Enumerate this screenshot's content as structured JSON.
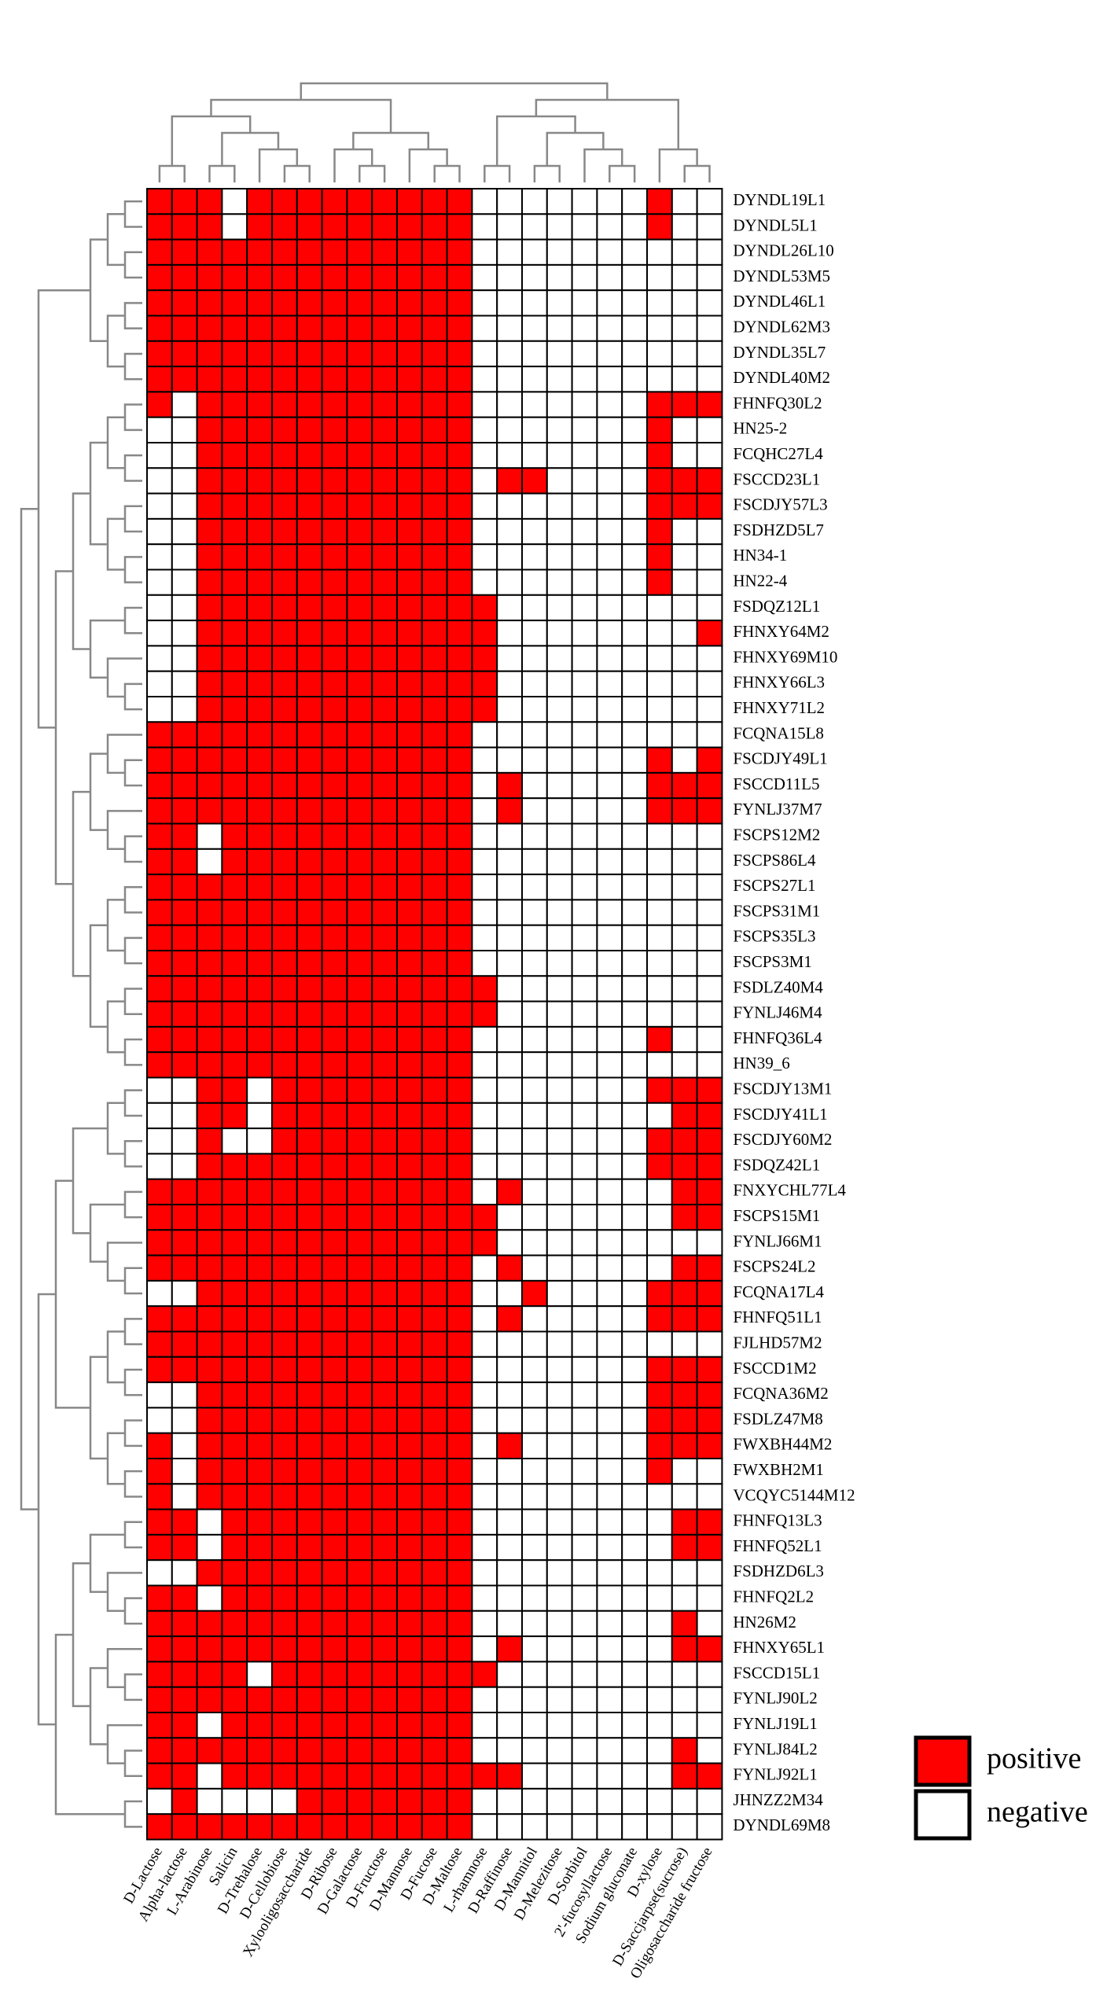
{
  "chart_data": {
    "type": "heatmap",
    "columns": [
      "D-Lactose",
      "Alpha-lactose",
      "L-Arabinose",
      "Salicin",
      "D-Trehalose",
      "D-Cellobiose",
      "Xylooligosaccharide",
      "D-Ribose",
      "D-Galactose",
      "D-Fructose",
      "D-Mannose",
      "D-Fucose",
      "D-Maltose",
      "L-rhamnose",
      "D-Raffinose",
      "D-Mannitol",
      "D-Melezitose",
      "D-Sorbitol",
      "2'-fucosyllactose",
      "Sodium gluconate",
      "D-xylose",
      "D-Saccjarpse(sucrose)",
      "Oligosaccharide fructose"
    ],
    "rows": [
      "DYNDL19L1",
      "DYNDL5L1",
      "DYNDL26L10",
      "DYNDL53M5",
      "DYNDL46L1",
      "DYNDL62M3",
      "DYNDL35L7",
      "DYNDL40M2",
      "FHNFQ30L2",
      "HN25-2",
      "FCQHC27L4",
      "FSCCD23L1",
      "FSCDJY57L3",
      "FSDHZD5L7",
      "HN34-1",
      "HN22-4",
      "FSDQZ12L1",
      "FHNXY64M2",
      "FHNXY69M10",
      "FHNXY66L3",
      "FHNXY71L2",
      "FCQNA15L8",
      "FSCDJY49L1",
      "FSCCD11L5",
      "FYNLJ37M7",
      "FSCPS12M2",
      "FSCPS86L4",
      "FSCPS27L1",
      "FSCPS31M1",
      "FSCPS35L3",
      "FSCPS3M1",
      "FSDLZ40M4",
      "FYNLJ46M4",
      "FHNFQ36L4",
      "HN39_6",
      "FSCDJY13M1",
      "FSCDJY41L1",
      "FSCDJY60M2",
      "FSDQZ42L1",
      "FNXYCHL77L4",
      "FSCPS15M1",
      "FYNLJ66M1",
      "FSCPS24L2",
      "FCQNA17L4",
      "FHNFQ51L1",
      "FJLHD57M2",
      "FSCCD1M2",
      "FCQNA36M2",
      "FSDLZ47M8",
      "FWXBH44M2",
      "FWXBH2M1",
      "VCQYC5144M12",
      "FHNFQ13L3",
      "FHNFQ52L1",
      "FSDHZD6L3",
      "FHNFQ2L2",
      "HN26M2",
      "FHNXY65L1",
      "FSCCD15L1",
      "FYNLJ90L2",
      "FYNLJ19L1",
      "FYNLJ84L2",
      "FYNLJ92L1",
      "JHNZZ2M34",
      "DYNDL69M8"
    ],
    "values": [
      [
        1,
        1,
        1,
        0,
        1,
        1,
        1,
        1,
        1,
        1,
        1,
        1,
        1,
        0,
        0,
        0,
        0,
        0,
        0,
        0,
        1,
        0,
        0
      ],
      [
        1,
        1,
        1,
        0,
        1,
        1,
        1,
        1,
        1,
        1,
        1,
        1,
        1,
        0,
        0,
        0,
        0,
        0,
        0,
        0,
        1,
        0,
        0
      ],
      [
        1,
        1,
        1,
        1,
        1,
        1,
        1,
        1,
        1,
        1,
        1,
        1,
        1,
        0,
        0,
        0,
        0,
        0,
        0,
        0,
        0,
        0,
        0
      ],
      [
        1,
        1,
        1,
        1,
        1,
        1,
        1,
        1,
        1,
        1,
        1,
        1,
        1,
        0,
        0,
        0,
        0,
        0,
        0,
        0,
        0,
        0,
        0
      ],
      [
        1,
        1,
        1,
        1,
        1,
        1,
        1,
        1,
        1,
        1,
        1,
        1,
        1,
        0,
        0,
        0,
        0,
        0,
        0,
        0,
        0,
        0,
        0
      ],
      [
        1,
        1,
        1,
        1,
        1,
        1,
        1,
        1,
        1,
        1,
        1,
        1,
        1,
        0,
        0,
        0,
        0,
        0,
        0,
        0,
        0,
        0,
        0
      ],
      [
        1,
        1,
        1,
        1,
        1,
        1,
        1,
        1,
        1,
        1,
        1,
        1,
        1,
        0,
        0,
        0,
        0,
        0,
        0,
        0,
        0,
        0,
        0
      ],
      [
        1,
        1,
        1,
        1,
        1,
        1,
        1,
        1,
        1,
        1,
        1,
        1,
        1,
        0,
        0,
        0,
        0,
        0,
        0,
        0,
        0,
        0,
        0
      ],
      [
        1,
        0,
        1,
        1,
        1,
        1,
        1,
        1,
        1,
        1,
        1,
        1,
        1,
        0,
        0,
        0,
        0,
        0,
        0,
        0,
        1,
        1,
        1
      ],
      [
        0,
        0,
        1,
        1,
        1,
        1,
        1,
        1,
        1,
        1,
        1,
        1,
        1,
        0,
        0,
        0,
        0,
        0,
        0,
        0,
        1,
        0,
        0
      ],
      [
        0,
        0,
        1,
        1,
        1,
        1,
        1,
        1,
        1,
        1,
        1,
        1,
        1,
        0,
        0,
        0,
        0,
        0,
        0,
        0,
        1,
        0,
        0
      ],
      [
        0,
        0,
        1,
        1,
        1,
        1,
        1,
        1,
        1,
        1,
        1,
        1,
        1,
        0,
        1,
        1,
        0,
        0,
        0,
        0,
        1,
        1,
        1
      ],
      [
        0,
        0,
        1,
        1,
        1,
        1,
        1,
        1,
        1,
        1,
        1,
        1,
        1,
        0,
        0,
        0,
        0,
        0,
        0,
        0,
        1,
        1,
        1
      ],
      [
        0,
        0,
        1,
        1,
        1,
        1,
        1,
        1,
        1,
        1,
        1,
        1,
        1,
        0,
        0,
        0,
        0,
        0,
        0,
        0,
        1,
        0,
        0
      ],
      [
        0,
        0,
        1,
        1,
        1,
        1,
        1,
        1,
        1,
        1,
        1,
        1,
        1,
        0,
        0,
        0,
        0,
        0,
        0,
        0,
        1,
        0,
        0
      ],
      [
        0,
        0,
        1,
        1,
        1,
        1,
        1,
        1,
        1,
        1,
        1,
        1,
        1,
        0,
        0,
        0,
        0,
        0,
        0,
        0,
        1,
        0,
        0
      ],
      [
        0,
        0,
        1,
        1,
        1,
        1,
        1,
        1,
        1,
        1,
        1,
        1,
        1,
        1,
        0,
        0,
        0,
        0,
        0,
        0,
        0,
        0,
        0
      ],
      [
        0,
        0,
        1,
        1,
        1,
        1,
        1,
        1,
        1,
        1,
        1,
        1,
        1,
        1,
        0,
        0,
        0,
        0,
        0,
        0,
        0,
        0,
        1
      ],
      [
        0,
        0,
        1,
        1,
        1,
        1,
        1,
        1,
        1,
        1,
        1,
        1,
        1,
        1,
        0,
        0,
        0,
        0,
        0,
        0,
        0,
        0,
        0
      ],
      [
        0,
        0,
        1,
        1,
        1,
        1,
        1,
        1,
        1,
        1,
        1,
        1,
        1,
        1,
        0,
        0,
        0,
        0,
        0,
        0,
        0,
        0,
        0
      ],
      [
        0,
        0,
        1,
        1,
        1,
        1,
        1,
        1,
        1,
        1,
        1,
        1,
        1,
        1,
        0,
        0,
        0,
        0,
        0,
        0,
        0,
        0,
        0
      ],
      [
        1,
        1,
        1,
        1,
        1,
        1,
        1,
        1,
        1,
        1,
        1,
        1,
        1,
        0,
        0,
        0,
        0,
        0,
        0,
        0,
        0,
        0,
        0
      ],
      [
        1,
        1,
        1,
        1,
        1,
        1,
        1,
        1,
        1,
        1,
        1,
        1,
        1,
        0,
        0,
        0,
        0,
        0,
        0,
        0,
        1,
        0,
        1
      ],
      [
        1,
        1,
        1,
        1,
        1,
        1,
        1,
        1,
        1,
        1,
        1,
        1,
        1,
        0,
        1,
        0,
        0,
        0,
        0,
        0,
        1,
        1,
        1
      ],
      [
        1,
        1,
        1,
        1,
        1,
        1,
        1,
        1,
        1,
        1,
        1,
        1,
        1,
        0,
        1,
        0,
        0,
        0,
        0,
        0,
        1,
        1,
        1
      ],
      [
        1,
        1,
        0,
        1,
        1,
        1,
        1,
        1,
        1,
        1,
        1,
        1,
        1,
        0,
        0,
        0,
        0,
        0,
        0,
        0,
        0,
        0,
        0
      ],
      [
        1,
        1,
        0,
        1,
        1,
        1,
        1,
        1,
        1,
        1,
        1,
        1,
        1,
        0,
        0,
        0,
        0,
        0,
        0,
        0,
        0,
        0,
        0
      ],
      [
        1,
        1,
        1,
        1,
        1,
        1,
        1,
        1,
        1,
        1,
        1,
        1,
        1,
        0,
        0,
        0,
        0,
        0,
        0,
        0,
        0,
        0,
        0
      ],
      [
        1,
        1,
        1,
        1,
        1,
        1,
        1,
        1,
        1,
        1,
        1,
        1,
        1,
        0,
        0,
        0,
        0,
        0,
        0,
        0,
        0,
        0,
        0
      ],
      [
        1,
        1,
        1,
        1,
        1,
        1,
        1,
        1,
        1,
        1,
        1,
        1,
        1,
        0,
        0,
        0,
        0,
        0,
        0,
        0,
        0,
        0,
        0
      ],
      [
        1,
        1,
        1,
        1,
        1,
        1,
        1,
        1,
        1,
        1,
        1,
        1,
        1,
        0,
        0,
        0,
        0,
        0,
        0,
        0,
        0,
        0,
        0
      ],
      [
        1,
        1,
        1,
        1,
        1,
        1,
        1,
        1,
        1,
        1,
        1,
        1,
        1,
        1,
        0,
        0,
        0,
        0,
        0,
        0,
        0,
        0,
        0
      ],
      [
        1,
        1,
        1,
        1,
        1,
        1,
        1,
        1,
        1,
        1,
        1,
        1,
        1,
        1,
        0,
        0,
        0,
        0,
        0,
        0,
        0,
        0,
        0
      ],
      [
        1,
        1,
        1,
        1,
        1,
        1,
        1,
        1,
        1,
        1,
        1,
        1,
        1,
        0,
        0,
        0,
        0,
        0,
        0,
        0,
        1,
        0,
        0
      ],
      [
        1,
        1,
        1,
        1,
        1,
        1,
        1,
        1,
        1,
        1,
        1,
        1,
        1,
        0,
        0,
        0,
        0,
        0,
        0,
        0,
        0,
        0,
        0
      ],
      [
        0,
        0,
        1,
        1,
        0,
        1,
        1,
        1,
        1,
        1,
        1,
        1,
        1,
        0,
        0,
        0,
        0,
        0,
        0,
        0,
        1,
        1,
        1
      ],
      [
        0,
        0,
        1,
        1,
        0,
        1,
        1,
        1,
        1,
        1,
        1,
        1,
        1,
        0,
        0,
        0,
        0,
        0,
        0,
        0,
        0,
        1,
        1
      ],
      [
        0,
        0,
        1,
        0,
        0,
        1,
        1,
        1,
        1,
        1,
        1,
        1,
        1,
        0,
        0,
        0,
        0,
        0,
        0,
        0,
        1,
        1,
        1
      ],
      [
        0,
        0,
        1,
        1,
        1,
        1,
        1,
        1,
        1,
        1,
        1,
        1,
        1,
        0,
        0,
        0,
        0,
        0,
        0,
        0,
        1,
        1,
        1
      ],
      [
        1,
        1,
        1,
        1,
        1,
        1,
        1,
        1,
        1,
        1,
        1,
        1,
        1,
        0,
        1,
        0,
        0,
        0,
        0,
        0,
        0,
        1,
        1
      ],
      [
        1,
        1,
        1,
        1,
        1,
        1,
        1,
        1,
        1,
        1,
        1,
        1,
        1,
        1,
        0,
        0,
        0,
        0,
        0,
        0,
        0,
        1,
        1
      ],
      [
        1,
        1,
        1,
        1,
        1,
        1,
        1,
        1,
        1,
        1,
        1,
        1,
        1,
        1,
        0,
        0,
        0,
        0,
        0,
        0,
        0,
        0,
        0
      ],
      [
        1,
        1,
        1,
        1,
        1,
        1,
        1,
        1,
        1,
        1,
        1,
        1,
        1,
        0,
        1,
        0,
        0,
        0,
        0,
        0,
        0,
        1,
        1
      ],
      [
        0,
        0,
        1,
        1,
        1,
        1,
        1,
        1,
        1,
        1,
        1,
        1,
        1,
        0,
        0,
        1,
        0,
        0,
        0,
        0,
        1,
        1,
        1
      ],
      [
        1,
        1,
        1,
        1,
        1,
        1,
        1,
        1,
        1,
        1,
        1,
        1,
        1,
        0,
        1,
        0,
        0,
        0,
        0,
        0,
        1,
        1,
        1
      ],
      [
        1,
        1,
        1,
        1,
        1,
        1,
        1,
        1,
        1,
        1,
        1,
        1,
        1,
        0,
        0,
        0,
        0,
        0,
        0,
        0,
        0,
        0,
        0
      ],
      [
        1,
        1,
        1,
        1,
        1,
        1,
        1,
        1,
        1,
        1,
        1,
        1,
        1,
        0,
        0,
        0,
        0,
        0,
        0,
        0,
        1,
        1,
        1
      ],
      [
        0,
        0,
        1,
        1,
        1,
        1,
        1,
        1,
        1,
        1,
        1,
        1,
        1,
        0,
        0,
        0,
        0,
        0,
        0,
        0,
        1,
        1,
        1
      ],
      [
        0,
        0,
        1,
        1,
        1,
        1,
        1,
        1,
        1,
        1,
        1,
        1,
        1,
        0,
        0,
        0,
        0,
        0,
        0,
        0,
        1,
        1,
        1
      ],
      [
        1,
        0,
        1,
        1,
        1,
        1,
        1,
        1,
        1,
        1,
        1,
        1,
        1,
        0,
        1,
        0,
        0,
        0,
        0,
        0,
        1,
        1,
        1
      ],
      [
        1,
        0,
        1,
        1,
        1,
        1,
        1,
        1,
        1,
        1,
        1,
        1,
        1,
        0,
        0,
        0,
        0,
        0,
        0,
        0,
        1,
        0,
        0
      ],
      [
        1,
        0,
        1,
        1,
        1,
        1,
        1,
        1,
        1,
        1,
        1,
        1,
        1,
        0,
        0,
        0,
        0,
        0,
        0,
        0,
        0,
        0,
        0
      ],
      [
        1,
        1,
        0,
        1,
        1,
        1,
        1,
        1,
        1,
        1,
        1,
        1,
        1,
        0,
        0,
        0,
        0,
        0,
        0,
        0,
        0,
        1,
        1
      ],
      [
        1,
        1,
        0,
        1,
        1,
        1,
        1,
        1,
        1,
        1,
        1,
        1,
        1,
        0,
        0,
        0,
        0,
        0,
        0,
        0,
        0,
        1,
        1
      ],
      [
        0,
        0,
        1,
        1,
        1,
        1,
        1,
        1,
        1,
        1,
        1,
        1,
        1,
        0,
        0,
        0,
        0,
        0,
        0,
        0,
        0,
        0,
        0
      ],
      [
        1,
        1,
        0,
        1,
        1,
        1,
        1,
        1,
        1,
        1,
        1,
        1,
        1,
        0,
        0,
        0,
        0,
        0,
        0,
        0,
        0,
        0,
        0
      ],
      [
        1,
        1,
        1,
        1,
        1,
        1,
        1,
        1,
        1,
        1,
        1,
        1,
        1,
        0,
        0,
        0,
        0,
        0,
        0,
        0,
        0,
        1,
        0
      ],
      [
        1,
        1,
        1,
        1,
        1,
        1,
        1,
        1,
        1,
        1,
        1,
        1,
        1,
        0,
        1,
        0,
        0,
        0,
        0,
        0,
        0,
        1,
        1
      ],
      [
        1,
        1,
        1,
        1,
        0,
        1,
        1,
        1,
        1,
        1,
        1,
        1,
        1,
        1,
        0,
        0,
        0,
        0,
        0,
        0,
        0,
        0,
        0
      ],
      [
        1,
        1,
        1,
        1,
        1,
        1,
        1,
        1,
        1,
        1,
        1,
        1,
        1,
        0,
        0,
        0,
        0,
        0,
        0,
        0,
        0,
        0,
        0
      ],
      [
        1,
        1,
        0,
        1,
        1,
        1,
        1,
        1,
        1,
        1,
        1,
        1,
        1,
        0,
        0,
        0,
        0,
        0,
        0,
        0,
        0,
        0,
        0
      ],
      [
        1,
        1,
        1,
        1,
        1,
        1,
        1,
        1,
        1,
        1,
        1,
        1,
        1,
        0,
        0,
        0,
        0,
        0,
        0,
        0,
        0,
        1,
        0
      ],
      [
        1,
        1,
        0,
        1,
        1,
        1,
        1,
        1,
        1,
        1,
        1,
        1,
        1,
        1,
        1,
        0,
        0,
        0,
        0,
        0,
        0,
        1,
        1
      ],
      [
        0,
        1,
        0,
        0,
        0,
        0,
        1,
        1,
        1,
        1,
        1,
        1,
        1,
        0,
        0,
        0,
        0,
        0,
        0,
        0,
        0,
        0,
        0
      ],
      [
        1,
        1,
        1,
        1,
        1,
        1,
        1,
        1,
        1,
        1,
        1,
        1,
        1,
        0,
        0,
        0,
        0,
        0,
        0,
        0,
        0,
        0,
        0
      ]
    ],
    "legend": [
      {
        "label": "positive",
        "value": 1,
        "color": "#ff0000"
      },
      {
        "label": "negative",
        "value": 0,
        "color": "#ffffff"
      }
    ]
  }
}
